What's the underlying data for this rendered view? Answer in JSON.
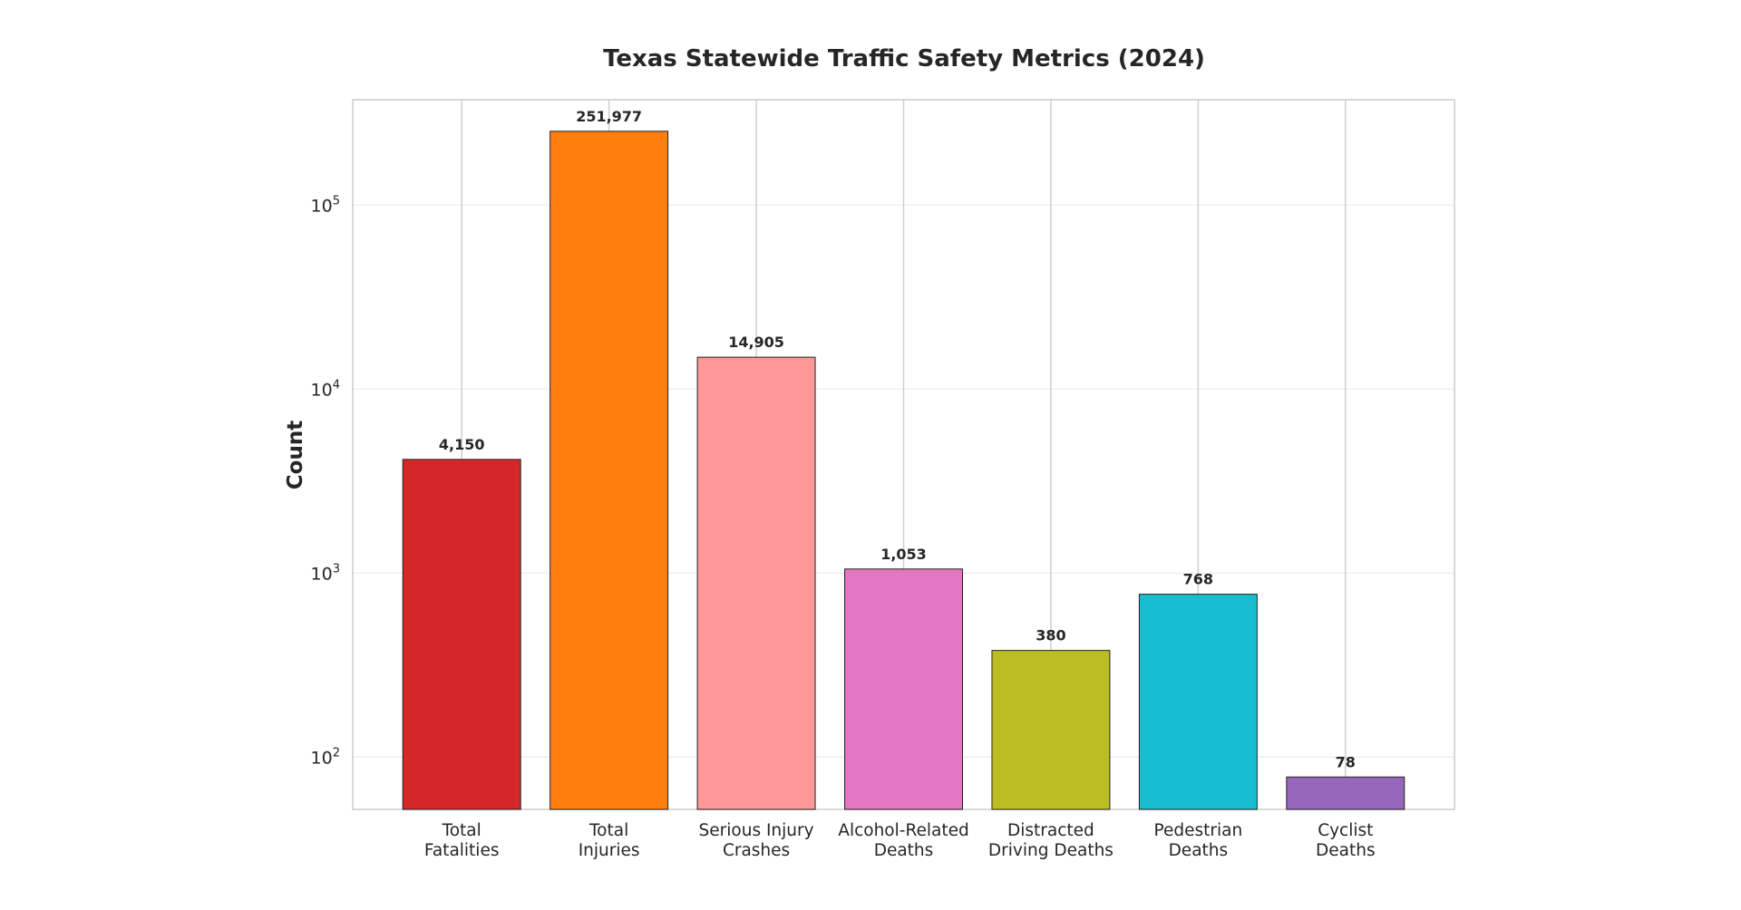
{
  "chart_data": {
    "type": "bar",
    "title": "Texas Statewide Traffic Safety Metrics (2024)",
    "xlabel": "",
    "ylabel": "Count",
    "yscale": "log",
    "ylim": [
      52,
      374000
    ],
    "grid": true,
    "categories": [
      [
        "Total",
        "Fatalities"
      ],
      [
        "Total",
        "Injuries"
      ],
      [
        "Serious Injury",
        "Crashes"
      ],
      [
        "Alcohol-Related",
        "Deaths"
      ],
      [
        "Distracted",
        "Driving Deaths"
      ],
      [
        "Pedestrian",
        "Deaths"
      ],
      [
        "Cyclist",
        "Deaths"
      ]
    ],
    "values": [
      4150,
      251977,
      14905,
      1053,
      380,
      768,
      78
    ],
    "data_labels": [
      "4,150",
      "251,977",
      "14,905",
      "1,053",
      "380",
      "768",
      "78"
    ],
    "colors": [
      "#d62728",
      "#ff7f0e",
      "#ff9896",
      "#e377c2",
      "#bcbd22",
      "#17becf",
      "#9467bd"
    ],
    "yticks": [
      {
        "value": 100,
        "base": "10",
        "exp": "2"
      },
      {
        "value": 1000,
        "base": "10",
        "exp": "3"
      },
      {
        "value": 10000,
        "base": "10",
        "exp": "4"
      },
      {
        "value": 100000,
        "base": "10",
        "exp": "5"
      }
    ]
  }
}
